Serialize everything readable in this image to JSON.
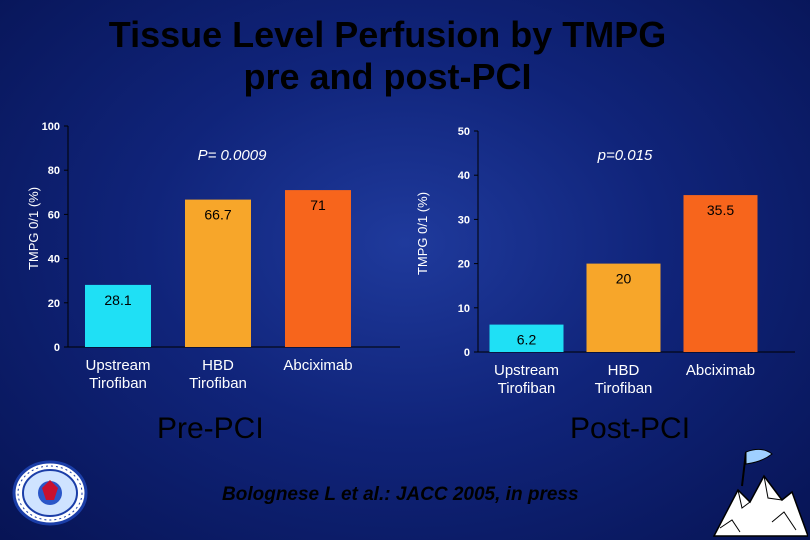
{
  "title_line1": "Tissue Level Perfusion by TMPG",
  "title_line2": "pre and post-PCI",
  "citation": "Bolognese L et al.: JACC 2005, in press",
  "chart_data": [
    {
      "type": "bar",
      "section_label": "Pre-PCI",
      "ylabel": "TMPG 0/1 (%)",
      "annotation": "P= 0.0009",
      "ylim": [
        0,
        100
      ],
      "yticks": [
        "0",
        "20",
        "40",
        "60",
        "80",
        "100"
      ],
      "categories": [
        "Upstream\nTirofiban",
        "HBD\nTirofiban",
        "Abciximab"
      ],
      "values": [
        28.1,
        66.7,
        71
      ],
      "value_labels": [
        "28.1",
        "66.7",
        "71"
      ],
      "colors": [
        "#1fe0f5",
        "#f7a62a",
        "#f7651c"
      ]
    },
    {
      "type": "bar",
      "section_label": "Post-PCI",
      "ylabel": "TMPG 0/1 (%)",
      "annotation": "p=0.015",
      "ylim": [
        0,
        50
      ],
      "yticks": [
        "0",
        "10",
        "20",
        "30",
        "40",
        "50"
      ],
      "categories": [
        "Upstream\nTirofiban",
        "HBD\nTirofiban",
        "Abciximab"
      ],
      "values": [
        6.2,
        20,
        35.5
      ],
      "value_labels": [
        "6.2",
        "20",
        "35.5"
      ],
      "colors": [
        "#1fe0f5",
        "#f7a62a",
        "#f7651c"
      ]
    }
  ],
  "icons": {
    "logo": "circular-society-seal-icon",
    "clipart": "mountain-flag-icon"
  }
}
